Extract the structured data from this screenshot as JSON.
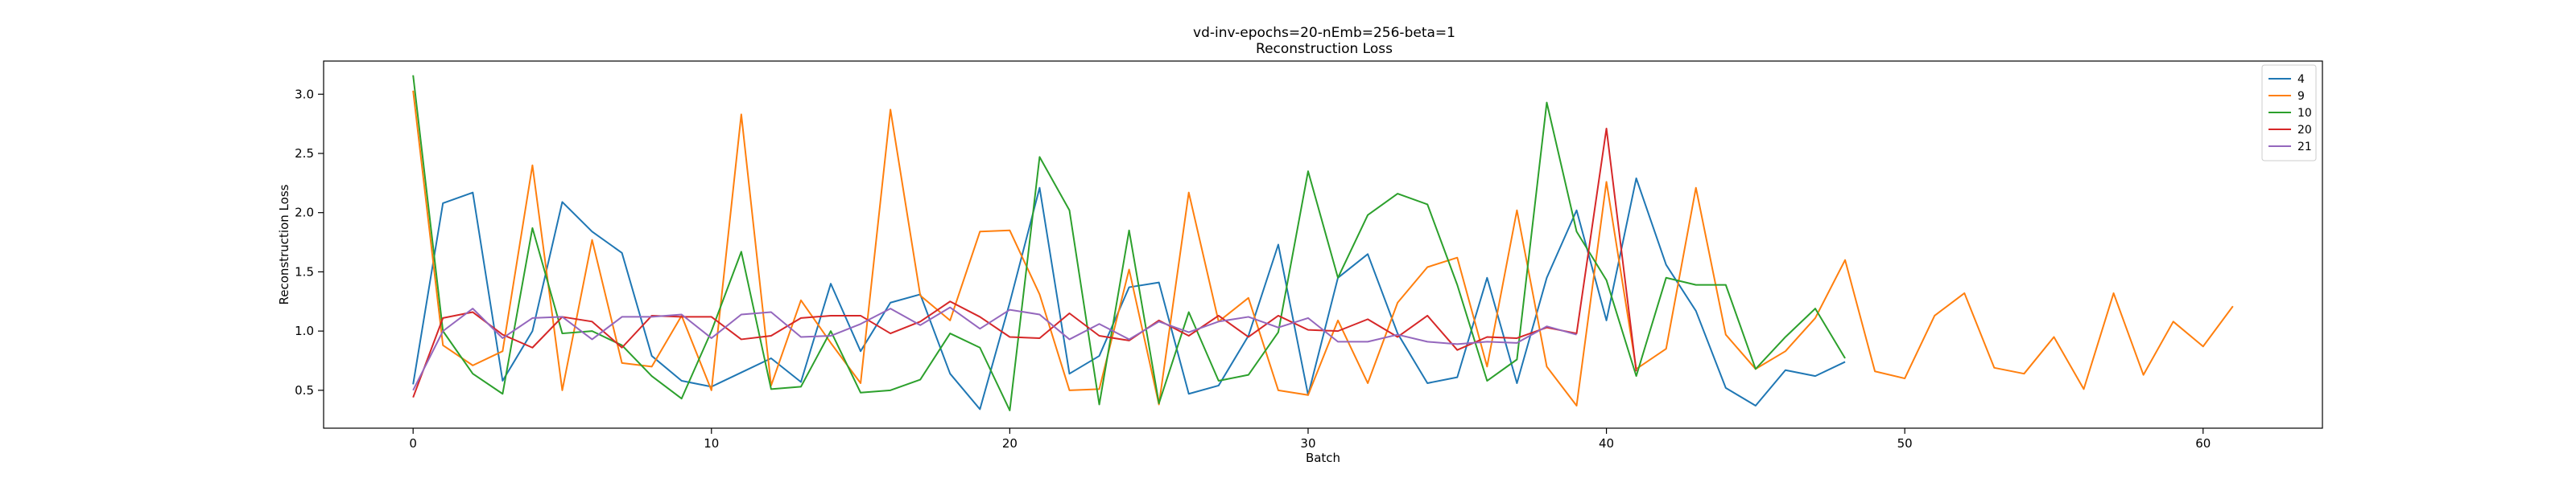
{
  "chart_data": {
    "type": "line",
    "title": "vd-inv-epochs=20-nEmb=256-beta=1",
    "subtitle": "Reconstruction Loss",
    "xlabel": "Batch",
    "ylabel": "Reconstruction Loss",
    "xlim": [
      -3,
      64
    ],
    "ylim": [
      0.18,
      3.28
    ],
    "xticks": [
      0,
      10,
      20,
      30,
      40,
      50,
      60
    ],
    "yticks": [
      0.5,
      1.0,
      1.5,
      2.0,
      2.5,
      3.0
    ],
    "xtick_labels": [
      "0",
      "10",
      "20",
      "30",
      "40",
      "50",
      "60"
    ],
    "ytick_labels": [
      "0.5",
      "1.0",
      "1.5",
      "2.0",
      "2.5",
      "3.0"
    ],
    "grid": false,
    "legend_position": "top-right",
    "series": [
      {
        "name": "4",
        "color": "#1f77b4",
        "values": [
          0.55,
          2.08,
          2.17,
          0.58,
          1.0,
          2.09,
          1.84,
          1.66,
          0.79,
          0.58,
          0.53,
          0.65,
          0.77,
          0.57,
          1.4,
          0.83,
          1.24,
          1.31,
          0.64,
          0.34,
          1.24,
          2.21,
          0.64,
          0.79,
          1.37,
          1.41,
          0.47,
          0.54,
          0.96,
          1.73,
          0.46,
          1.45,
          1.65,
          0.98,
          0.56,
          0.61,
          1.45,
          0.56,
          1.45,
          2.02,
          1.09,
          2.29,
          1.56,
          1.17,
          0.52,
          0.37,
          0.67,
          0.62,
          0.74
        ]
      },
      {
        "name": "9",
        "color": "#ff7f0e",
        "values": [
          3.03,
          0.88,
          0.71,
          0.83,
          2.4,
          0.5,
          1.77,
          0.73,
          0.7,
          1.13,
          0.5,
          2.83,
          0.54,
          1.26,
          0.9,
          0.56,
          2.87,
          1.3,
          1.09,
          1.84,
          1.85,
          1.31,
          0.5,
          0.51,
          1.52,
          0.38,
          2.17,
          1.08,
          1.28,
          0.5,
          0.46,
          1.09,
          0.56,
          1.24,
          1.54,
          1.62,
          0.7,
          2.02,
          0.7,
          0.37,
          2.26,
          0.68,
          0.85,
          2.21,
          0.97,
          0.68,
          0.83,
          1.11,
          1.6,
          0.66,
          0.6,
          1.13,
          1.32,
          0.69,
          0.64,
          0.95,
          0.51,
          1.32,
          0.63,
          1.08,
          0.87,
          1.21
        ]
      },
      {
        "name": "10",
        "color": "#2ca02c",
        "values": [
          3.16,
          1.0,
          0.64,
          0.47,
          1.87,
          0.98,
          1.0,
          0.88,
          0.62,
          0.43,
          1.0,
          1.67,
          0.51,
          0.53,
          1.0,
          0.48,
          0.5,
          0.59,
          0.98,
          0.86,
          0.33,
          2.47,
          2.02,
          0.38,
          1.85,
          0.39,
          1.16,
          0.58,
          0.63,
          0.99,
          2.35,
          1.45,
          1.98,
          2.16,
          2.07,
          1.39,
          0.58,
          0.76,
          2.93,
          1.84,
          1.43,
          0.62,
          1.45,
          1.39,
          1.39,
          0.68,
          0.95,
          1.19,
          0.77
        ]
      },
      {
        "name": "20",
        "color": "#d62728",
        "values": [
          0.44,
          1.11,
          1.16,
          0.97,
          0.86,
          1.12,
          1.08,
          0.86,
          1.13,
          1.12,
          1.12,
          0.93,
          0.96,
          1.11,
          1.13,
          1.13,
          0.98,
          1.08,
          1.25,
          1.12,
          0.95,
          0.94,
          1.15,
          0.96,
          0.92,
          1.09,
          0.96,
          1.13,
          0.95,
          1.13,
          1.01,
          1.0,
          1.1,
          0.95,
          1.13,
          0.84,
          0.95,
          0.94,
          1.03,
          0.98,
          2.71,
          0.66
        ]
      },
      {
        "name": "21",
        "color": "#9467bd",
        "values": [
          0.5,
          1.0,
          1.19,
          0.94,
          1.11,
          1.12,
          0.93,
          1.12,
          1.12,
          1.14,
          0.94,
          1.14,
          1.16,
          0.95,
          0.96,
          1.06,
          1.19,
          1.05,
          1.2,
          1.02,
          1.18,
          1.14,
          0.93,
          1.06,
          0.93,
          1.08,
          0.99,
          1.08,
          1.12,
          1.03,
          1.11,
          0.91,
          0.91,
          0.97,
          0.91,
          0.89,
          0.91,
          0.9,
          1.04,
          0.97
        ]
      }
    ]
  }
}
